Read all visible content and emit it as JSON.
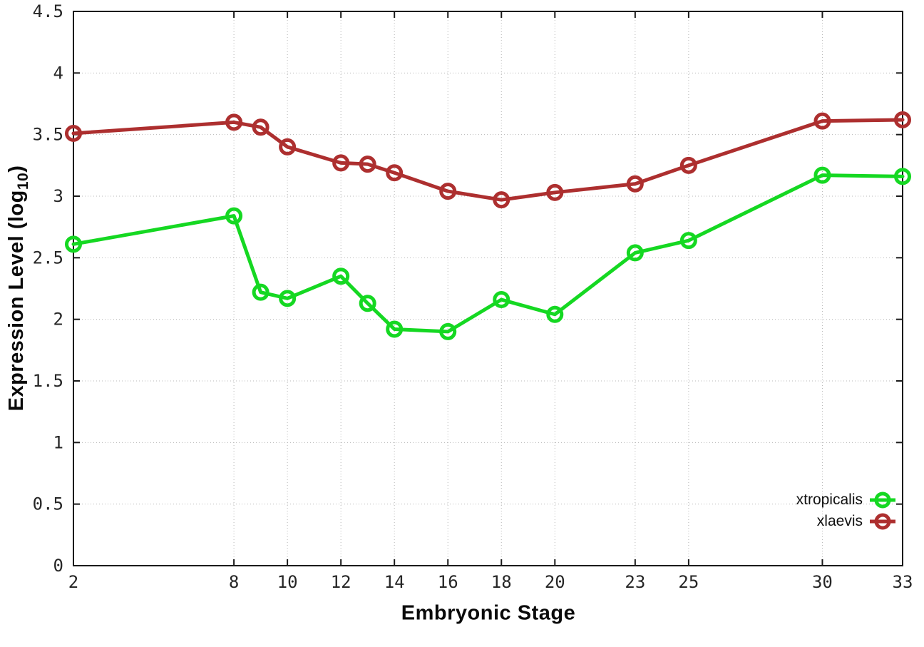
{
  "chart_data": {
    "type": "line",
    "title": "",
    "xlabel": "Embryonic Stage",
    "ylabel": "Expression Level (log10)",
    "ylabel_parts": {
      "prefix": "Expression Level (log",
      "subscript": "10",
      "suffix": ")"
    },
    "x": [
      2,
      8,
      9,
      10,
      12,
      13,
      14,
      16,
      18,
      20,
      23,
      25,
      30,
      33
    ],
    "xticks": [
      2,
      8,
      10,
      12,
      14,
      16,
      18,
      20,
      23,
      25,
      30,
      33
    ],
    "xtick_labels": [
      "2",
      "8",
      "10",
      "12",
      "14",
      "16",
      "18",
      "20",
      "23",
      "25",
      "30",
      "33"
    ],
    "yticks": [
      0,
      0.5,
      1,
      1.5,
      2,
      2.5,
      3,
      3.5,
      4,
      4.5
    ],
    "ytick_labels": [
      "0",
      "0.5",
      "1",
      "1.5",
      "2",
      "2.5",
      "3",
      "3.5",
      "4",
      "4.5"
    ],
    "xlim": [
      2,
      33
    ],
    "ylim": [
      0,
      4.5
    ],
    "grid": true,
    "legend_position": "inside-right",
    "series": [
      {
        "name": "xtropicalis",
        "color": "#15d822",
        "marker": "open-circle",
        "values": [
          2.61,
          2.84,
          2.22,
          2.17,
          2.35,
          2.13,
          1.92,
          1.9,
          2.16,
          2.04,
          2.54,
          2.64,
          3.17,
          3.16
        ]
      },
      {
        "name": "xlaevis",
        "color": "#ad2f2f",
        "marker": "open-circle",
        "values": [
          3.51,
          3.6,
          3.56,
          3.4,
          3.27,
          3.26,
          3.19,
          3.04,
          2.97,
          3.03,
          3.1,
          3.25,
          3.61,
          3.62
        ]
      }
    ],
    "colors": {
      "border": "#1a1a1a",
      "grid": "#b8b8b8",
      "tick_text": "#262626"
    }
  }
}
